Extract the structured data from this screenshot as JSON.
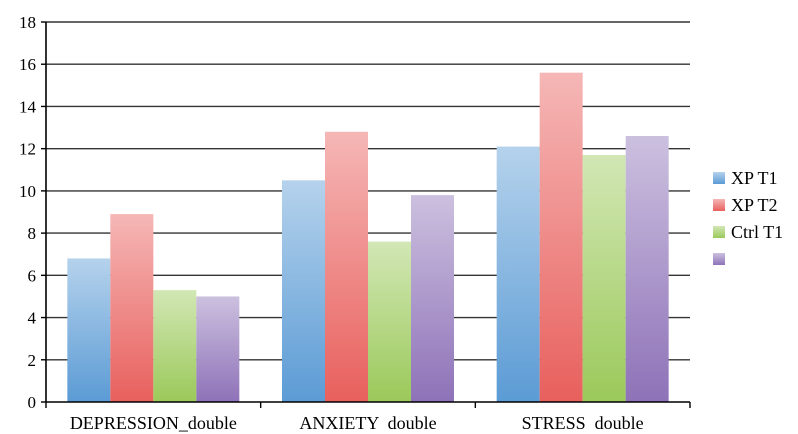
{
  "chart_data": {
    "type": "bar",
    "categories": [
      "DEPRESSION_double",
      "ANXIETY  double",
      "STRESS  double"
    ],
    "series": [
      {
        "name": "XP T1",
        "color": "#5b9bd5",
        "values": [
          6.8,
          10.5,
          12.1
        ]
      },
      {
        "name": "XP T2",
        "color": "#e8605d",
        "values": [
          8.9,
          12.8,
          15.6
        ]
      },
      {
        "name": "Ctrl T1",
        "color": "#9bc95a",
        "values": [
          5.3,
          7.6,
          11.7
        ]
      },
      {
        "name": "",
        "color": "#8e72b8",
        "values": [
          5.0,
          9.8,
          12.6
        ]
      }
    ],
    "ylim": [
      0,
      18
    ],
    "yticks": [
      0,
      2,
      4,
      6,
      8,
      10,
      12,
      14,
      16,
      18
    ],
    "grid": true,
    "legend_position": "right"
  }
}
